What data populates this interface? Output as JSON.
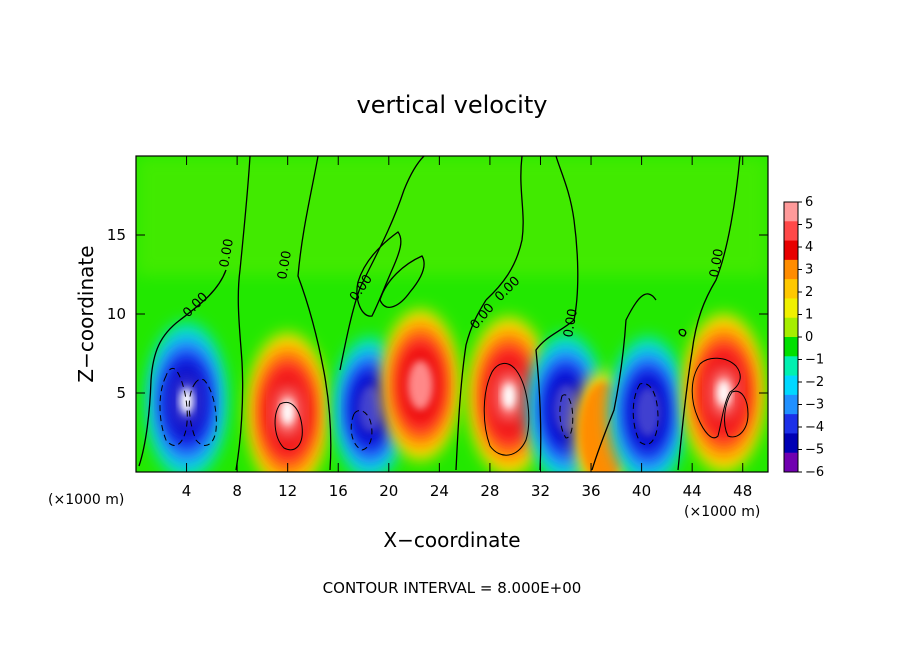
{
  "chart_data": {
    "type": "heatmap",
    "title": "vertical velocity",
    "xlabel": "X−coordinate",
    "ylabel": "Z−coordinate",
    "x_unit_left": "(×1000 m)",
    "x_unit_right": "(×1000 m)",
    "xlim": [
      0,
      50
    ],
    "ylim": [
      0,
      20
    ],
    "x_ticks": [
      4,
      8,
      12,
      16,
      20,
      24,
      28,
      32,
      36,
      40,
      44,
      48
    ],
    "y_ticks": [
      5,
      10,
      15
    ],
    "colorbar": {
      "ticks": [
        "6",
        "5",
        "4",
        "3",
        "2",
        "1",
        "0",
        "−1",
        "−2",
        "−3",
        "−4",
        "−5",
        "−6"
      ],
      "colors": [
        "#ff9a9a",
        "#ff4848",
        "#e80000",
        "#ff8c00",
        "#ffc800",
        "#f0f000",
        "#a6ee00",
        "#00e000",
        "#00f0b0",
        "#00d8ff",
        "#2090ff",
        "#1c30e8",
        "#0000b4",
        "#7000b0"
      ]
    },
    "contour_labels": [
      "0.00",
      "0.00",
      "0.00",
      "0.00",
      "0.00",
      "0.00",
      "0.00",
      "0.00"
    ],
    "contour_interval": "CONTOUR INTERVAL = 8.000E+00",
    "features": [
      {
        "x": 4.0,
        "z": 4.5,
        "w": -8
      },
      {
        "x": 12.0,
        "z": 3.8,
        "w": 8
      },
      {
        "x": 18.5,
        "z": 4.0,
        "w": -6
      },
      {
        "x": 22.5,
        "z": 5.5,
        "w": 7
      },
      {
        "x": 29.5,
        "z": 4.8,
        "w": 8
      },
      {
        "x": 34.0,
        "z": 4.0,
        "w": -7
      },
      {
        "x": 37.0,
        "z": 2.5,
        "w": 3
      },
      {
        "x": 40.5,
        "z": 3.8,
        "w": -7
      },
      {
        "x": 46.5,
        "z": 5.0,
        "w": 8
      }
    ]
  }
}
